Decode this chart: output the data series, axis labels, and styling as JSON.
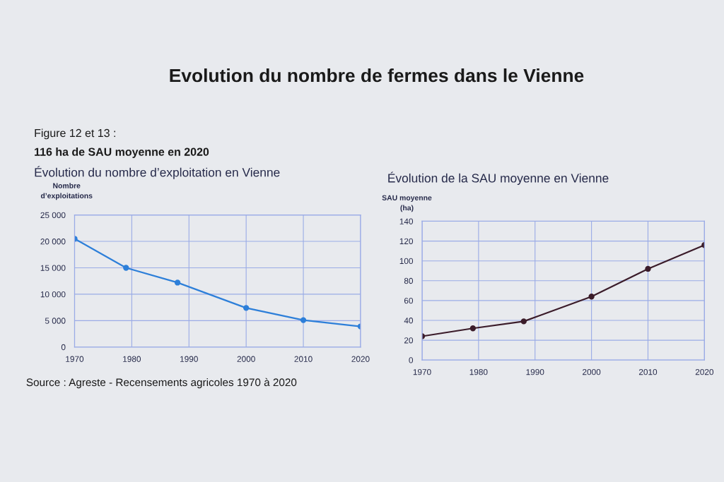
{
  "chart_data": [
    {
      "type": "line",
      "title": "Evolution du nombre de fermes dans le Vienne",
      "subtitle": "Évolution du nombre d’exploitation en Vienne",
      "ylabel": "Nombre\nd’exploitations",
      "annotations": [
        "Figure 12 et 13 :",
        "116 ha de SAU moyenne en 2020",
        "Source : Agreste - Recensements agricoles 1970 à 2020"
      ],
      "x": [
        1970,
        1979,
        1988,
        2000,
        2010,
        2020
      ],
      "series": [
        {
          "color": "#2d7fd9",
          "values": [
            20500,
            15000,
            12200,
            7400,
            5100,
            3900
          ]
        }
      ],
      "xlim": [
        1970,
        2020
      ],
      "xticks": [
        1970,
        1980,
        1990,
        2000,
        2010,
        2020
      ],
      "ylim": [
        0,
        25000
      ],
      "yticks": [
        0,
        {
          "value": 5000,
          "label": "5 000"
        },
        {
          "value": 10000,
          "label": "10 000"
        },
        {
          "value": 15000,
          "label": "15 000"
        },
        {
          "value": 20000,
          "label": "20 000"
        },
        {
          "value": 25000,
          "label": "25 000"
        }
      ],
      "grid": true,
      "marker": "circle",
      "line_style": "solid"
    },
    {
      "type": "line",
      "title": "Évolution de la SAU moyenne en Vienne",
      "ylabel": "SAU moyenne\n(ha)",
      "x": [
        1970,
        1979,
        1988,
        2000,
        2010,
        2020
      ],
      "series": [
        {
          "color": "#3b1c2a",
          "values": [
            24,
            32,
            39,
            64,
            92,
            116
          ]
        }
      ],
      "xlim": [
        1970,
        2020
      ],
      "xticks": [
        1970,
        1980,
        1990,
        2000,
        2010,
        2020
      ],
      "ylim": [
        0,
        140
      ],
      "yticks": [
        0,
        20,
        40,
        60,
        80,
        100,
        120,
        140
      ],
      "grid": true,
      "marker": "circle",
      "line_style": "solid"
    }
  ]
}
